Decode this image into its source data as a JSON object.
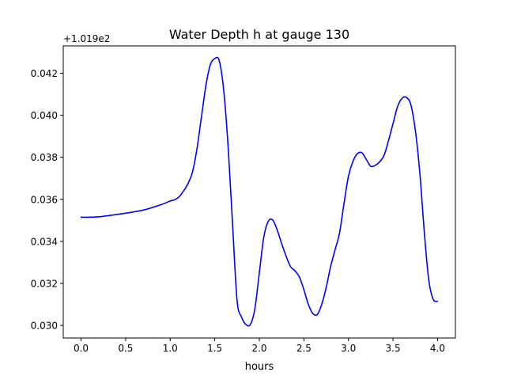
{
  "chart_data": {
    "type": "line",
    "title": "Water Depth h at gauge 130",
    "xlabel": "hours",
    "ylabel": "",
    "offset_label": "+1.019e2",
    "xlim": [
      -0.2,
      4.2
    ],
    "ylim": [
      0.0294,
      0.0433
    ],
    "xticks": [
      0.0,
      0.5,
      1.0,
      1.5,
      2.0,
      2.5,
      3.0,
      3.5,
      4.0
    ],
    "xtick_labels": [
      "0.0",
      "0.5",
      "1.0",
      "1.5",
      "2.0",
      "2.5",
      "3.0",
      "3.5",
      "4.0"
    ],
    "yticks": [
      0.03,
      0.032,
      0.034,
      0.036,
      0.038,
      0.04,
      0.042
    ],
    "ytick_labels": [
      "0.030",
      "0.032",
      "0.034",
      "0.036",
      "0.038",
      "0.040",
      "0.042"
    ],
    "grid": false,
    "series": [
      {
        "color": "#0000ff",
        "x": [
          0.0,
          0.1,
          0.2,
          0.3,
          0.4,
          0.5,
          0.6,
          0.7,
          0.8,
          0.9,
          1.0,
          1.05,
          1.1,
          1.15,
          1.2,
          1.25,
          1.3,
          1.35,
          1.4,
          1.45,
          1.5,
          1.55,
          1.6,
          1.65,
          1.7,
          1.75,
          1.8,
          1.85,
          1.9,
          1.95,
          2.0,
          2.05,
          2.1,
          2.15,
          2.2,
          2.25,
          2.3,
          2.35,
          2.4,
          2.45,
          2.5,
          2.55,
          2.6,
          2.65,
          2.7,
          2.75,
          2.8,
          2.85,
          2.9,
          2.95,
          3.0,
          3.05,
          3.1,
          3.15,
          3.2,
          3.25,
          3.3,
          3.35,
          3.4,
          3.45,
          3.5,
          3.55,
          3.6,
          3.65,
          3.7,
          3.75,
          3.8,
          3.85,
          3.9,
          3.95,
          4.0
        ],
        "y": [
          0.03515,
          0.03515,
          0.03517,
          0.03522,
          0.03528,
          0.03534,
          0.03541,
          0.03549,
          0.03561,
          0.03575,
          0.03592,
          0.03598,
          0.03612,
          0.0364,
          0.03675,
          0.0373,
          0.0384,
          0.0399,
          0.0414,
          0.0424,
          0.0427,
          0.0426,
          0.0412,
          0.0385,
          0.0348,
          0.0312,
          0.0304,
          0.03004,
          0.03005,
          0.0308,
          0.0325,
          0.0342,
          0.03495,
          0.03502,
          0.03455,
          0.0339,
          0.0333,
          0.0328,
          0.0326,
          0.0323,
          0.0317,
          0.031,
          0.03057,
          0.03052,
          0.031,
          0.0318,
          0.0328,
          0.0336,
          0.0344,
          0.0358,
          0.0371,
          0.0378,
          0.03817,
          0.03822,
          0.0379,
          0.03757,
          0.03762,
          0.03778,
          0.0381,
          0.0388,
          0.0396,
          0.0404,
          0.0408,
          0.04085,
          0.0405,
          0.0393,
          0.0373,
          0.0345,
          0.0322,
          0.03125,
          0.03115
        ]
      }
    ]
  }
}
